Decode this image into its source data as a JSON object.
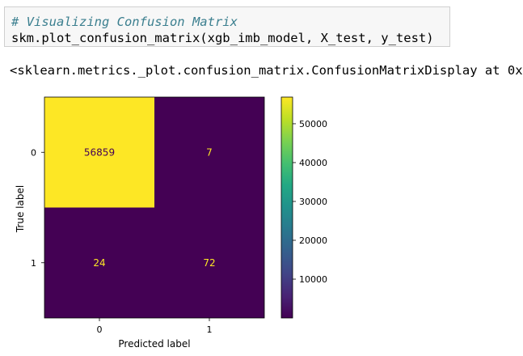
{
  "code_cell": {
    "comment": "# Visualizing Confusion Matrix",
    "code": "skm.plot_confusion_matrix(xgb_imb_model, X_test, y_test)"
  },
  "output": {
    "repr_text": "<sklearn.metrics._plot.confusion_matrix.ConfusionMatrixDisplay at 0x"
  },
  "chart_data": {
    "type": "heatmap",
    "x_tick_labels": [
      "0",
      "1"
    ],
    "y_tick_labels": [
      "0",
      "1"
    ],
    "xlabel": "Predicted label",
    "ylabel": "True label",
    "matrix": [
      [
        56859,
        7
      ],
      [
        24,
        72
      ]
    ],
    "colorbar": {
      "ticks": [
        10000,
        20000,
        30000,
        40000,
        50000
      ],
      "tick_labels": [
        "10000",
        "20000",
        "30000",
        "40000",
        "50000"
      ],
      "range": [
        7,
        56859
      ],
      "colormap": "viridis"
    },
    "colors": {
      "high": "#fde725",
      "low": "#440154",
      "text_on_high": "#440154",
      "text_on_low": "#fde725"
    }
  }
}
